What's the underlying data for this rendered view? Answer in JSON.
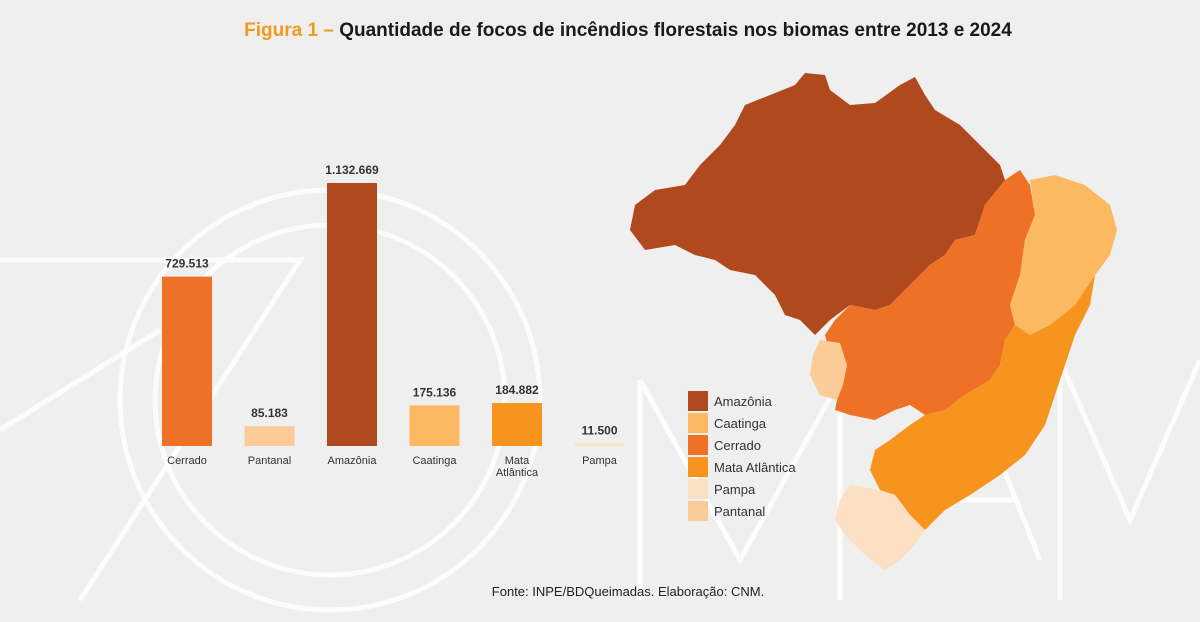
{
  "title": {
    "prefix": "Figura 1 –",
    "text": "Quantidade de focos de incêndios florestais nos biomas entre 2013 e 2024"
  },
  "source": "Fonte: INPE/BDQueimadas. Elaboração: CNM.",
  "colors": {
    "Amazônia": "#b04a1e",
    "Caatinga": "#fbb962",
    "Cerrado": "#ef7125",
    "Mata Atlântica": "#f7941d",
    "Pampa": "#fde0c4",
    "Pantanal": "#fbcb98"
  },
  "chart_data": {
    "type": "bar",
    "title": "Quantidade de focos de incêndios florestais nos biomas entre 2013 e 2024",
    "xlabel": "",
    "ylabel": "",
    "ylim": [
      0,
      1132669
    ],
    "grid": false,
    "categories": [
      "Cerrado",
      "Pantanal",
      "Amazônia",
      "Caatinga",
      "Mata Atlântica",
      "Pampa"
    ],
    "category_lines": [
      [
        "Cerrado"
      ],
      [
        "Pantanal"
      ],
      [
        "Amazônia"
      ],
      [
        "Caatinga"
      ],
      [
        "Mata",
        "Atlântica"
      ],
      [
        "Pampa"
      ]
    ],
    "values": [
      729513,
      85183,
      1132669,
      175136,
      184882,
      11500
    ],
    "value_labels": [
      "729.513",
      "85.183",
      "1.132.669",
      "175.136",
      "184.882",
      "11.500"
    ],
    "bar_colors": [
      "#ef7125",
      "#fbcb98",
      "#b04a1e",
      "#fbb962",
      "#f7941d",
      "#fde0c4"
    ]
  },
  "legend": {
    "placement": "center-right",
    "items": [
      {
        "label": "Amazônia",
        "color": "#b04a1e"
      },
      {
        "label": "Caatinga",
        "color": "#fbb962"
      },
      {
        "label": "Cerrado",
        "color": "#ef7125"
      },
      {
        "label": "Mata Atlântica",
        "color": "#f7941d"
      },
      {
        "label": "Pampa",
        "color": "#fde0c4"
      },
      {
        "label": "Pantanal",
        "color": "#fbcb98"
      }
    ]
  }
}
